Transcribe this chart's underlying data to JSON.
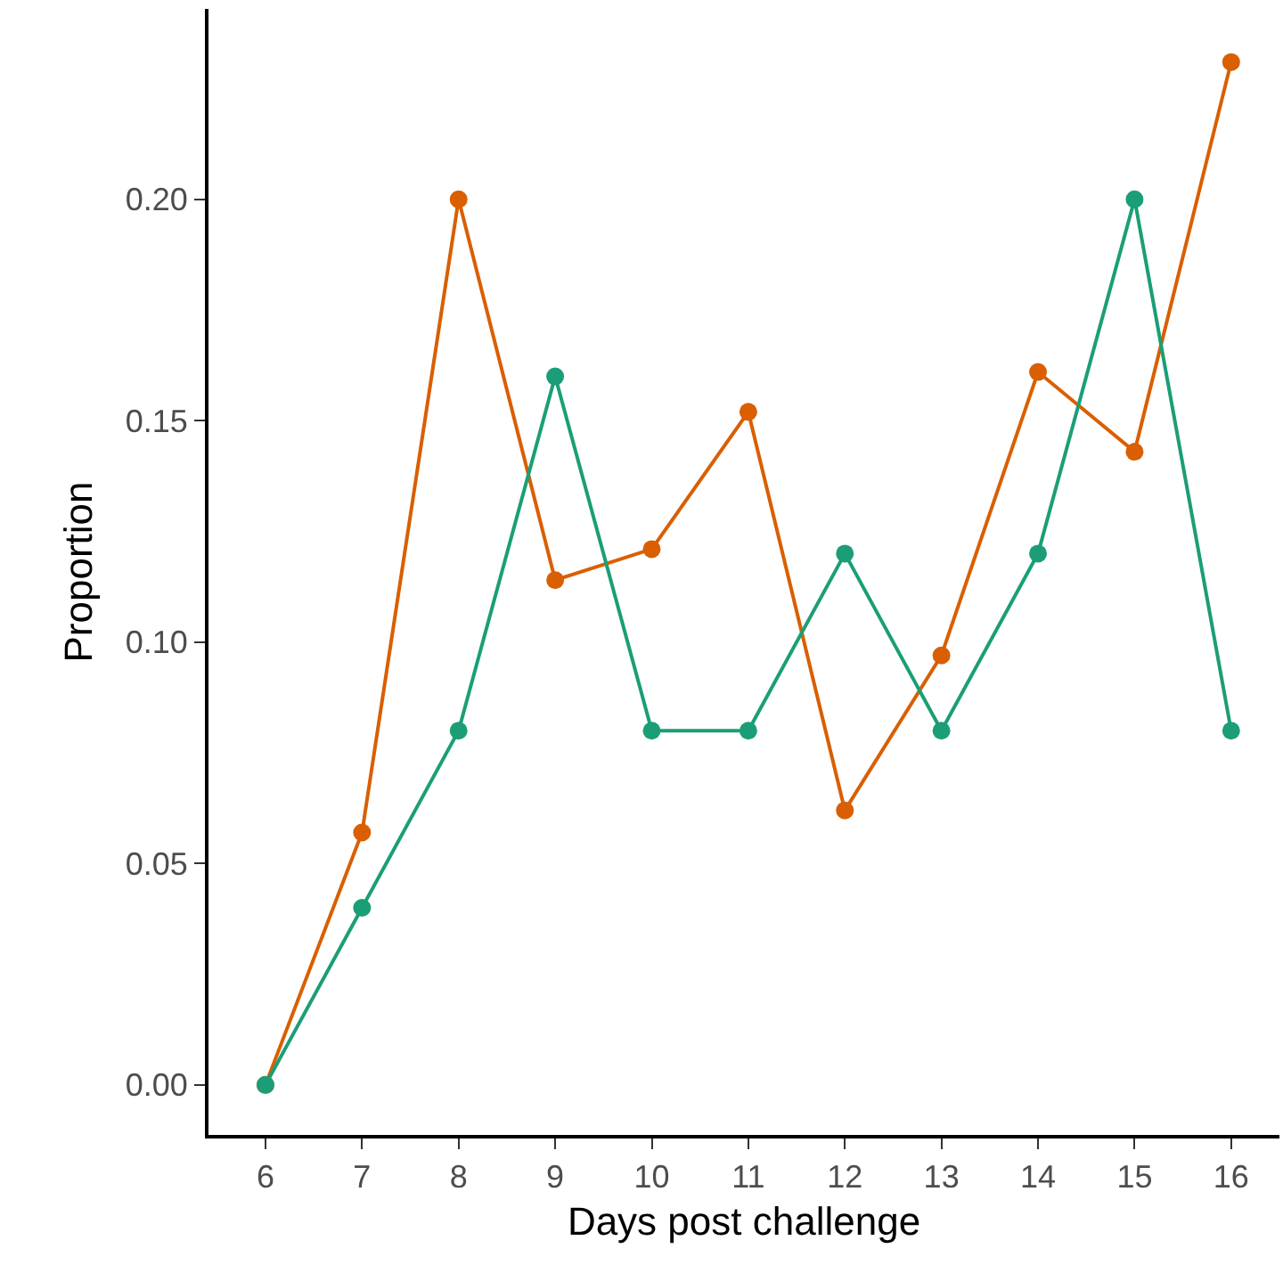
{
  "chart_data": {
    "type": "line",
    "xlabel": "Days post challenge",
    "ylabel": "Proportion",
    "x": [
      6,
      7,
      8,
      9,
      10,
      11,
      12,
      13,
      14,
      15,
      16
    ],
    "series": [
      {
        "color": "#d95f02",
        "values": [
          0,
          0.057,
          0.2,
          0.114,
          0.121,
          0.152,
          0.062,
          0.097,
          0.161,
          0.143,
          0.231
        ]
      },
      {
        "color": "#1b9e77",
        "values": [
          0,
          0.04,
          0.08,
          0.16,
          0.08,
          0.08,
          0.12,
          0.08,
          0.12,
          0.2,
          0.08
        ]
      }
    ],
    "xlim": [
      5.41,
      16.5
    ],
    "xticks": [
      6,
      7,
      8,
      9,
      10,
      11,
      12,
      13,
      14,
      15,
      16
    ],
    "ylim": [
      -0.0113,
      0.243
    ],
    "yticks": [
      {
        "value": 0,
        "label": "0.00"
      },
      {
        "value": 0.05,
        "label": "0.05"
      },
      {
        "value": 0.1,
        "label": "0.10"
      },
      {
        "value": 0.15,
        "label": "0.15"
      },
      {
        "value": 0.2,
        "label": "0.20"
      }
    ],
    "marker": "circle",
    "line_style": "solid",
    "grid": false
  }
}
